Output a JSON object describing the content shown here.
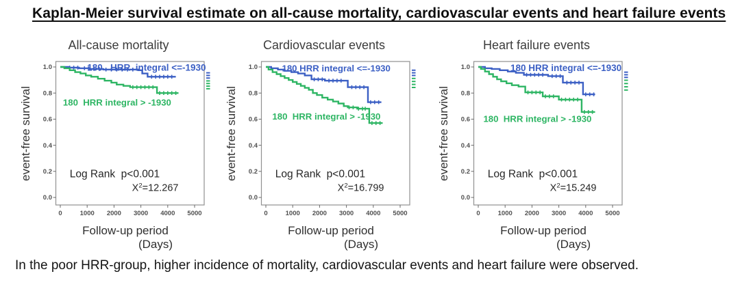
{
  "page": {
    "title": "Kaplan-Meier survival estimate on all-cause mortality, cardiovascular events and heart failure events",
    "caption": "In the poor HRR-group, higher incidence of mortality, cardiovascular events and heart failure were observed."
  },
  "colors": {
    "blue": "#3B5FC4",
    "green": "#2DB563",
    "box_border": "#909090",
    "tick_text": "#4f4f4f",
    "stats_text": "#262626"
  },
  "chart_data": [
    {
      "type": "line",
      "title": "All-cause mortality",
      "xlabel": "Follow-up period",
      "xunit": "(Days)",
      "ylabel": "event-free survival",
      "xlim": [
        0,
        5000
      ],
      "ylim": [
        0.0,
        1.0
      ],
      "xticks": [
        0,
        1000,
        2000,
        3000,
        4000,
        5000
      ],
      "yticks": [
        "1.0",
        "0.8",
        "0.6",
        "0.4",
        "0.2",
        "0.0"
      ],
      "grid": false,
      "log_rank_label": "Log Rank  p<0.001",
      "chi_squared": "12.267",
      "series": [
        {
          "name": "180   HRR  integral <=-1930",
          "color_key": "blue",
          "steps": [
            [
              0,
              1.0
            ],
            [
              300,
              1.0
            ],
            [
              300,
              0.995
            ],
            [
              700,
              0.995
            ],
            [
              700,
              0.99
            ],
            [
              1100,
              0.99
            ],
            [
              1100,
              0.985
            ],
            [
              1600,
              0.985
            ],
            [
              1600,
              0.98
            ],
            [
              2900,
              0.98
            ],
            [
              2900,
              0.975
            ],
            [
              3050,
              0.975
            ],
            [
              3050,
              0.95
            ],
            [
              3250,
              0.95
            ],
            [
              3250,
              0.925
            ],
            [
              4300,
              0.925
            ]
          ],
          "censor_x": [
            350,
            500,
            650,
            900,
            1050,
            1250,
            1450,
            1700,
            1900,
            2100,
            2300,
            2500,
            2700,
            3400,
            3550,
            3700,
            3850,
            4000,
            4150
          ],
          "label_pos": {
            "x": 1000,
            "y": 0.972,
            "font": 13.5
          },
          "edge_marks": [
            0.955,
            0.935,
            0.915
          ]
        },
        {
          "name": "180  HRR integral > -1930",
          "color_key": "green",
          "steps": [
            [
              0,
              1.0
            ],
            [
              150,
              1.0
            ],
            [
              150,
              0.99
            ],
            [
              350,
              0.99
            ],
            [
              350,
              0.975
            ],
            [
              550,
              0.975
            ],
            [
              550,
              0.96
            ],
            [
              750,
              0.96
            ],
            [
              750,
              0.95
            ],
            [
              950,
              0.95
            ],
            [
              950,
              0.935
            ],
            [
              1150,
              0.935
            ],
            [
              1150,
              0.925
            ],
            [
              1400,
              0.925
            ],
            [
              1400,
              0.91
            ],
            [
              1650,
              0.91
            ],
            [
              1650,
              0.895
            ],
            [
              1900,
              0.895
            ],
            [
              1900,
              0.88
            ],
            [
              2100,
              0.88
            ],
            [
              2100,
              0.865
            ],
            [
              2350,
              0.865
            ],
            [
              2350,
              0.855
            ],
            [
              2600,
              0.855
            ],
            [
              2600,
              0.845
            ],
            [
              3600,
              0.845
            ],
            [
              3600,
              0.8
            ],
            [
              4400,
              0.8
            ]
          ],
          "censor_x": [
            2700,
            2850,
            3000,
            3150,
            3300,
            3450,
            3700,
            3850,
            4000,
            4150,
            4300
          ],
          "label_pos": {
            "x": 100,
            "y": 0.705,
            "font": 13.2
          },
          "edge_marks": [
            0.893,
            0.873,
            0.853,
            0.833
          ]
        }
      ]
    },
    {
      "type": "line",
      "title": "Cardiovascular events",
      "xlabel": "Follow-up period",
      "xunit": "(Days)",
      "ylabel": "event-free survival",
      "xlim": [
        0,
        5000
      ],
      "ylim": [
        0.0,
        1.0
      ],
      "xticks": [
        0,
        1000,
        2000,
        3000,
        4000,
        5000
      ],
      "yticks": [
        "1.0",
        "0.8",
        "0.6",
        "0.4",
        "0.2",
        "0.0"
      ],
      "grid": false,
      "log_rank_label": "Log Rank  p<0.001",
      "chi_squared": "16.799",
      "series": [
        {
          "name": "180 HRR integral <=-1930",
          "color_key": "blue",
          "steps": [
            [
              0,
              1.0
            ],
            [
              200,
              1.0
            ],
            [
              200,
              0.99
            ],
            [
              450,
              0.99
            ],
            [
              450,
              0.98
            ],
            [
              700,
              0.98
            ],
            [
              700,
              0.97
            ],
            [
              950,
              0.97
            ],
            [
              950,
              0.96
            ],
            [
              1200,
              0.96
            ],
            [
              1200,
              0.95
            ],
            [
              1450,
              0.95
            ],
            [
              1450,
              0.935
            ],
            [
              1700,
              0.935
            ],
            [
              1700,
              0.905
            ],
            [
              2200,
              0.905
            ],
            [
              2200,
              0.895
            ],
            [
              3050,
              0.895
            ],
            [
              3050,
              0.845
            ],
            [
              3800,
              0.845
            ],
            [
              3800,
              0.73
            ],
            [
              4300,
              0.73
            ]
          ],
          "censor_x": [
            1800,
            1950,
            2100,
            2350,
            2500,
            2650,
            2800,
            3200,
            3350,
            3500,
            3650,
            3900,
            4050,
            4200
          ],
          "label_pos": {
            "x": 600,
            "y": 0.965,
            "font": 13.2
          },
          "edge_marks": [
            0.975,
            0.955,
            0.935
          ]
        },
        {
          "name": "180  HRR integral > -1930",
          "color_key": "green",
          "steps": [
            [
              0,
              1.0
            ],
            [
              100,
              1.0
            ],
            [
              100,
              0.98
            ],
            [
              250,
              0.98
            ],
            [
              250,
              0.96
            ],
            [
              400,
              0.96
            ],
            [
              400,
              0.945
            ],
            [
              550,
              0.945
            ],
            [
              550,
              0.93
            ],
            [
              700,
              0.93
            ],
            [
              700,
              0.915
            ],
            [
              850,
              0.915
            ],
            [
              850,
              0.9
            ],
            [
              1000,
              0.9
            ],
            [
              1000,
              0.885
            ],
            [
              1150,
              0.885
            ],
            [
              1150,
              0.87
            ],
            [
              1300,
              0.87
            ],
            [
              1300,
              0.855
            ],
            [
              1450,
              0.855
            ],
            [
              1450,
              0.84
            ],
            [
              1600,
              0.84
            ],
            [
              1600,
              0.825
            ],
            [
              1750,
              0.825
            ],
            [
              1750,
              0.8
            ],
            [
              1900,
              0.8
            ],
            [
              1900,
              0.785
            ],
            [
              2100,
              0.785
            ],
            [
              2100,
              0.765
            ],
            [
              2300,
              0.765
            ],
            [
              2300,
              0.75
            ],
            [
              2500,
              0.75
            ],
            [
              2500,
              0.735
            ],
            [
              2700,
              0.735
            ],
            [
              2700,
              0.72
            ],
            [
              2900,
              0.72
            ],
            [
              2900,
              0.7
            ],
            [
              3050,
              0.7
            ],
            [
              3050,
              0.69
            ],
            [
              3400,
              0.69
            ],
            [
              3400,
              0.68
            ],
            [
              3850,
              0.68
            ],
            [
              3850,
              0.57
            ],
            [
              4350,
              0.57
            ]
          ],
          "censor_x": [
            3100,
            3250,
            3450,
            3600,
            3700,
            3950,
            4100,
            4250
          ],
          "label_pos": {
            "x": 240,
            "y": 0.598,
            "font": 13.2
          },
          "edge_marks": [
            0.912,
            0.889,
            0.866,
            0.843
          ]
        }
      ]
    },
    {
      "type": "line",
      "title": "Heart failure events",
      "xlabel": "Follow-up period",
      "xunit": "(Days)",
      "ylabel": "event-free survival",
      "xlim": [
        0,
        5000
      ],
      "ylim": [
        0.0,
        1.0
      ],
      "xticks": [
        0,
        1000,
        2000,
        3000,
        4000,
        5000
      ],
      "yticks": [
        "1.0",
        "0.8",
        "0.6",
        "0.4",
        "0.2",
        "0.0"
      ],
      "grid": false,
      "log_rank_label": "Log Rank  p<0.001",
      "chi_squared": "15.249",
      "series": [
        {
          "name": "180 HRR integral <=-1930",
          "color_key": "blue",
          "steps": [
            [
              0,
              1.0
            ],
            [
              250,
              1.0
            ],
            [
              250,
              0.99
            ],
            [
              500,
              0.99
            ],
            [
              500,
              0.985
            ],
            [
              800,
              0.985
            ],
            [
              800,
              0.975
            ],
            [
              1100,
              0.975
            ],
            [
              1100,
              0.965
            ],
            [
              1400,
              0.965
            ],
            [
              1400,
              0.955
            ],
            [
              1700,
              0.955
            ],
            [
              1700,
              0.94
            ],
            [
              2600,
              0.94
            ],
            [
              2600,
              0.93
            ],
            [
              3150,
              0.93
            ],
            [
              3150,
              0.88
            ],
            [
              3900,
              0.88
            ],
            [
              3900,
              0.79
            ],
            [
              4350,
              0.79
            ]
          ],
          "censor_x": [
            1800,
            1950,
            2100,
            2250,
            2400,
            2750,
            2900,
            3050,
            3300,
            3450,
            3600,
            3750,
            4000,
            4150,
            4300
          ],
          "label_pos": {
            "x": 1200,
            "y": 0.968,
            "font": 13.5
          },
          "edge_marks": [
            0.96,
            0.94,
            0.92
          ]
        },
        {
          "name": "180  HRR integral > -1930",
          "color_key": "green",
          "steps": [
            [
              0,
              1.0
            ],
            [
              100,
              1.0
            ],
            [
              100,
              0.985
            ],
            [
              250,
              0.985
            ],
            [
              250,
              0.965
            ],
            [
              400,
              0.965
            ],
            [
              400,
              0.945
            ],
            [
              550,
              0.945
            ],
            [
              550,
              0.925
            ],
            [
              700,
              0.925
            ],
            [
              700,
              0.905
            ],
            [
              850,
              0.905
            ],
            [
              850,
              0.89
            ],
            [
              1050,
              0.89
            ],
            [
              1050,
              0.875
            ],
            [
              1250,
              0.875
            ],
            [
              1250,
              0.86
            ],
            [
              1500,
              0.86
            ],
            [
              1500,
              0.85
            ],
            [
              1750,
              0.85
            ],
            [
              1750,
              0.805
            ],
            [
              2400,
              0.805
            ],
            [
              2400,
              0.775
            ],
            [
              3000,
              0.775
            ],
            [
              3000,
              0.75
            ],
            [
              3850,
              0.75
            ],
            [
              3850,
              0.655
            ],
            [
              4350,
              0.655
            ]
          ],
          "censor_x": [
            1850,
            2000,
            2150,
            2300,
            2500,
            2650,
            2800,
            3100,
            3250,
            3400,
            3550,
            3700,
            3950,
            4100,
            4250
          ],
          "label_pos": {
            "x": 190,
            "y": 0.578,
            "font": 13.2
          },
          "edge_marks": [
            0.898,
            0.873,
            0.848,
            0.823
          ]
        }
      ]
    }
  ]
}
